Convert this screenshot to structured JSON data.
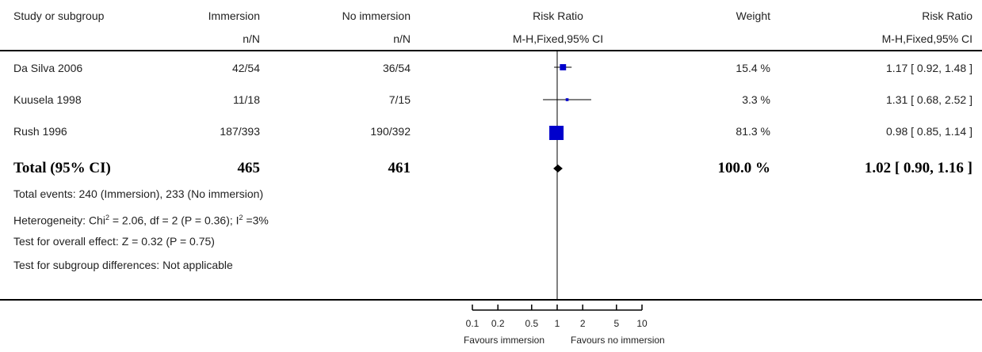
{
  "header": {
    "study": "Study or subgroup",
    "group1": "Immersion",
    "group2": "No immersion",
    "group1_sub": "n/N",
    "group2_sub": "n/N",
    "effect": "Risk Ratio",
    "effect_sub": "M-H,Fixed,95% CI",
    "weight": "Weight",
    "effect2": "Risk Ratio",
    "effect2_sub": "M-H,Fixed,95% CI"
  },
  "studies": [
    {
      "name": "Da Silva 2006",
      "g1": "42/54",
      "g2": "36/54",
      "weight": "15.4 %",
      "ci_text": "1.17 [ 0.92, 1.48 ]"
    },
    {
      "name": "Kuusela 1998",
      "g1": "11/18",
      "g2": "7/15",
      "weight": "3.3 %",
      "ci_text": "1.31 [ 0.68, 2.52 ]"
    },
    {
      "name": "Rush 1996",
      "g1": "187/393",
      "g2": "190/392",
      "weight": "81.3 %",
      "ci_text": "0.98 [ 0.85, 1.14 ]"
    }
  ],
  "total": {
    "label": "Total (95% CI)",
    "g1": "465",
    "g2": "461",
    "weight": "100.0 %",
    "ci_text": "1.02 [ 0.90, 1.16 ]"
  },
  "footnotes": {
    "events": "Total events: 240 (Immersion), 233 (No immersion)",
    "het_prefix": "Heterogeneity: Chi",
    "het_sup1": "2",
    "het_mid": " = 2.06, df = 2 (P = 0.36); I",
    "het_sup2": "2",
    "het_suffix": " =3%",
    "overall": "Test for overall effect: Z = 0.32 (P = 0.75)",
    "subgroup": "Test for subgroup differences: Not applicable"
  },
  "axis": {
    "tick_labels": [
      "0.1",
      "0.2",
      "0.5",
      "1",
      "2",
      "5",
      "10"
    ],
    "favours_left": "Favours immersion",
    "favours_right": "Favours no immersion"
  },
  "chart_data": {
    "type": "forest",
    "scale": "log",
    "xlim": [
      0.1,
      10
    ],
    "ticks": [
      0.1,
      0.2,
      0.5,
      1,
      2,
      5,
      10
    ],
    "studies": [
      {
        "name": "Da Silva 2006",
        "rr": 1.17,
        "lower": 0.92,
        "upper": 1.48,
        "weight": 15.4
      },
      {
        "name": "Kuusela 1998",
        "rr": 1.31,
        "lower": 0.68,
        "upper": 2.52,
        "weight": 3.3
      },
      {
        "name": "Rush 1996",
        "rr": 0.98,
        "lower": 0.85,
        "upper": 1.14,
        "weight": 81.3
      }
    ],
    "total": {
      "rr": 1.02,
      "lower": 0.9,
      "upper": 1.16
    },
    "marker_color": "#0000cc"
  }
}
